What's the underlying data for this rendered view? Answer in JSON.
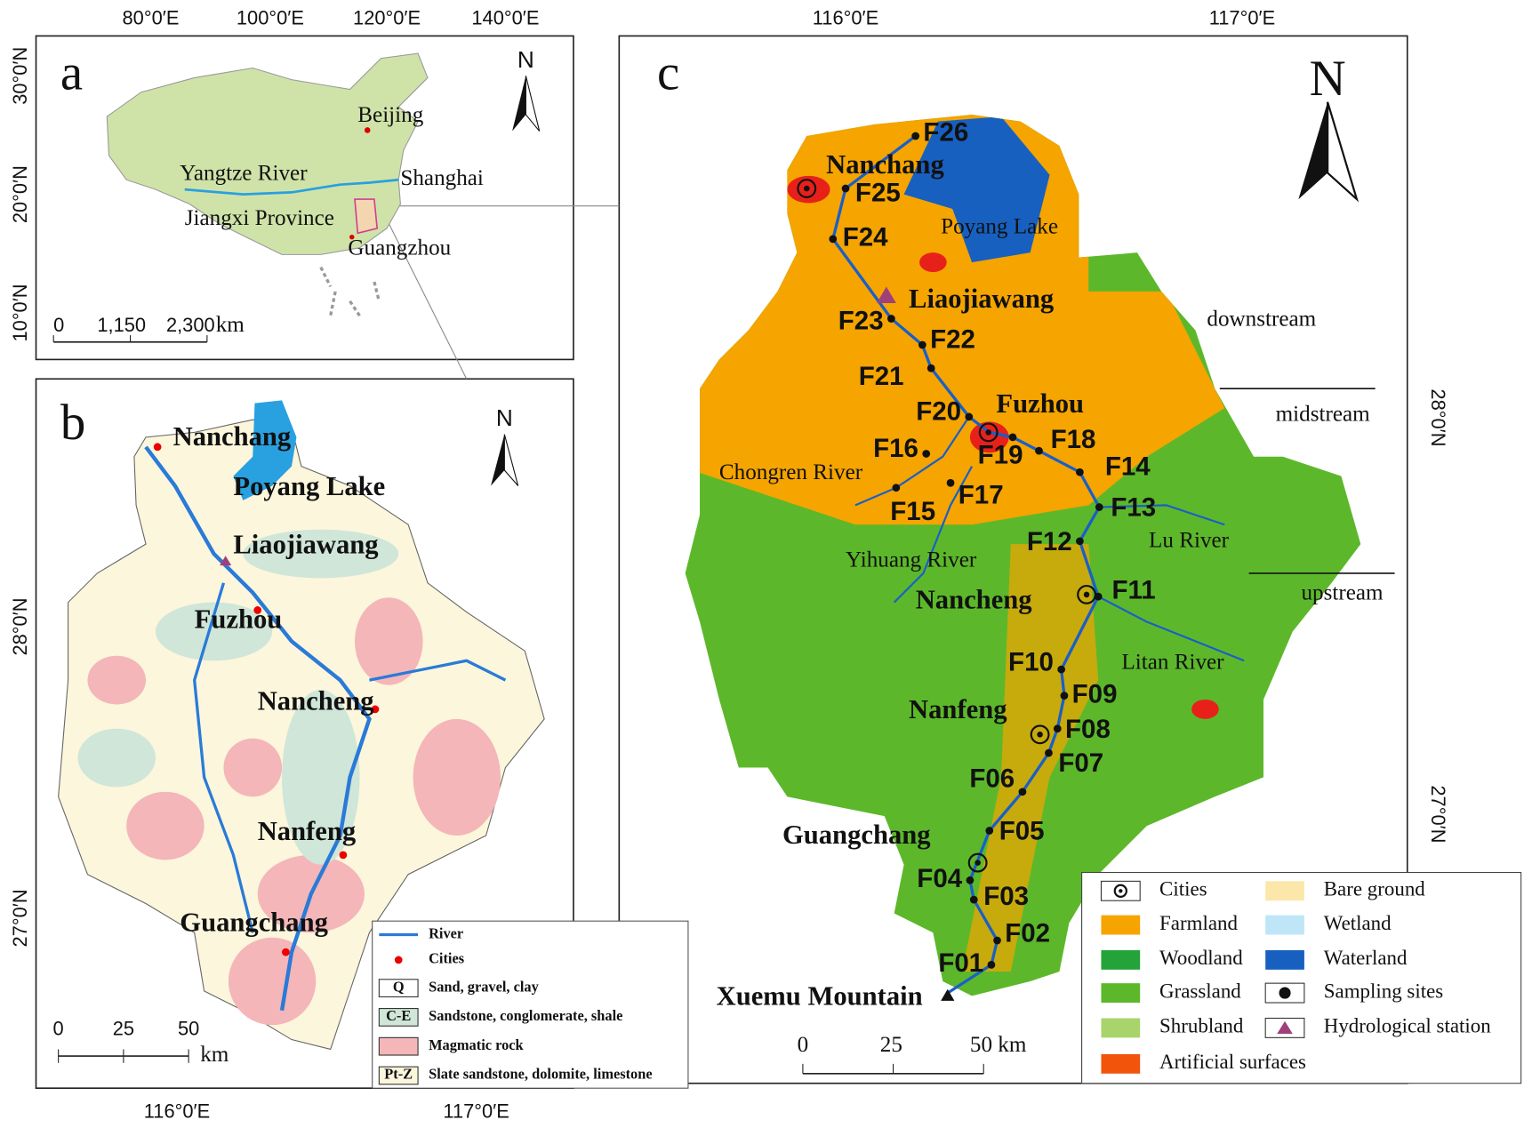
{
  "panels": {
    "a": {
      "letter": "a",
      "top_ticks": [
        "80°0′E",
        "100°0′E",
        "120°0′E",
        "140°0′E"
      ],
      "left_ticks": [
        "30°0′N",
        "20°0′N",
        "10°0′N"
      ],
      "north": "N",
      "places": [
        "Beijing",
        "Yangtze River",
        "Shanghai",
        "Jiangxi Province",
        "Guangzhou"
      ],
      "scale": [
        "0",
        "1,150",
        "2,300"
      ],
      "scale_unit": "km"
    },
    "b": {
      "letter": "b",
      "left_ticks": [
        "28°0′N",
        "27°0′N"
      ],
      "bottom_ticks": [
        "116°0′E",
        "117°0′E"
      ],
      "north": "N",
      "places": [
        "Nanchang",
        "Poyang Lake",
        "Liaojiawang",
        "Fuzhou",
        "Nancheng",
        "Nanfeng",
        "Guangchang"
      ],
      "scale": [
        "0",
        "25",
        "50"
      ],
      "scale_unit": "km",
      "legend": [
        {
          "label": "River"
        },
        {
          "label": "Cities"
        },
        {
          "code": "Q",
          "label": "Sand, gravel, clay"
        },
        {
          "code": "C-E",
          "label": "Sandstone, conglomerate, shale"
        },
        {
          "label": "Magmatic rock"
        },
        {
          "code": "Pt-Z",
          "label": "Slate sandstone, dolomite, limestone"
        }
      ]
    },
    "c": {
      "letter": "c",
      "top_ticks": [
        "116°0′E",
        "117°0′E"
      ],
      "right_ticks": [
        "28°0′N",
        "27°0′N"
      ],
      "north": "N",
      "places": [
        "Nanchang",
        "Poyang Lake",
        "Liaojiawang",
        "Fuzhou",
        "Nancheng",
        "Nanfeng",
        "Guangchang",
        "Xuemu Mountain"
      ],
      "rivers": [
        "Chongren River",
        "Yihuang River",
        "Lu River",
        "Litan River"
      ],
      "reaches": [
        "downstream",
        "midstream",
        "upstream"
      ],
      "sampling_sites": [
        "F01",
        "F02",
        "F03",
        "F04",
        "F05",
        "F06",
        "F07",
        "F08",
        "F09",
        "F10",
        "F11",
        "F12",
        "F13",
        "F14",
        "F15",
        "F16",
        "F17",
        "F18",
        "F19",
        "F20",
        "F21",
        "F22",
        "F23",
        "F24",
        "F25",
        "F26"
      ],
      "scale": [
        "0",
        "25",
        "50 km"
      ],
      "legend": [
        {
          "label": "Cities"
        },
        {
          "label": "Farmland",
          "color": "#f5a400"
        },
        {
          "label": "Woodland",
          "color": "#23a33a"
        },
        {
          "label": "Grassland",
          "color": "#5cb82a"
        },
        {
          "label": "Shrubland",
          "color": "#a9d46c"
        },
        {
          "label": "Artificial surfaces",
          "color": "#f2540c"
        },
        {
          "label": "Bare ground",
          "color": "#fbe7a9"
        },
        {
          "label": "Wetland",
          "color": "#bfe6f7"
        },
        {
          "label": "Waterland",
          "color": "#1760c0"
        },
        {
          "label": "Sampling sites"
        },
        {
          "label": "Hydrological station"
        }
      ]
    }
  }
}
